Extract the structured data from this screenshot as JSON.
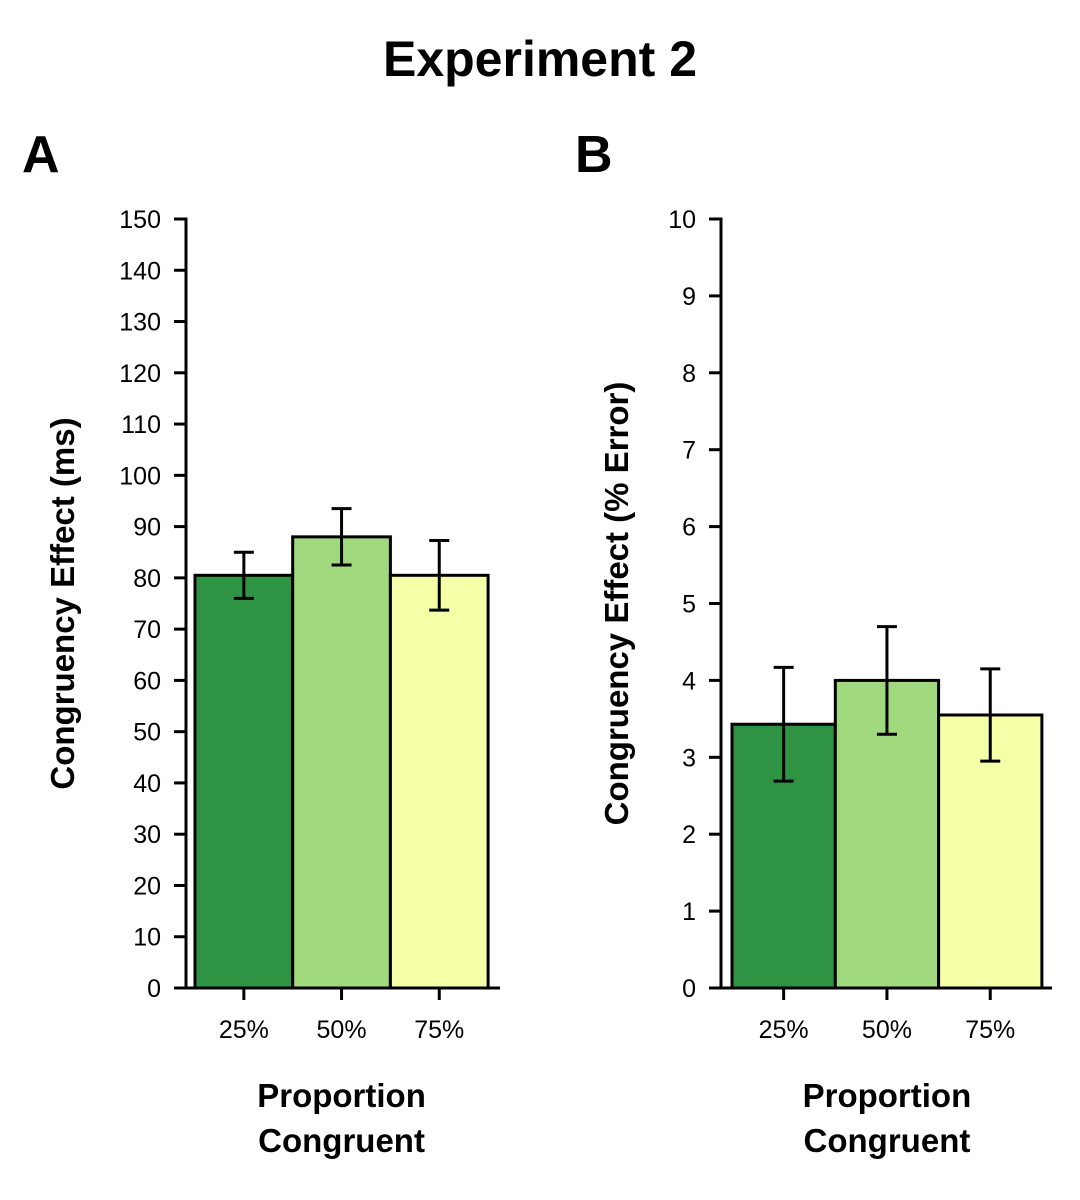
{
  "figure": {
    "title": "Experiment 2"
  },
  "chart_data": [
    {
      "panel": "A",
      "type": "bar",
      "title": "",
      "categories": [
        "25%",
        "50%",
        "75%"
      ],
      "values": [
        80.5,
        88,
        80.5
      ],
      "errors": [
        4.5,
        5.5,
        6.8
      ],
      "bar_colors": [
        "#2e9444",
        "#a1d97f",
        "#f4ffa8"
      ],
      "xlabel": "Proportion Congruent",
      "ylabel": "Congruency Effect (ms)",
      "ylim": [
        0,
        150
      ],
      "yticks": [
        0,
        10,
        20,
        30,
        40,
        50,
        60,
        70,
        80,
        90,
        100,
        110,
        120,
        130,
        140,
        150
      ],
      "grid": false,
      "legend": "none"
    },
    {
      "panel": "B",
      "type": "bar",
      "title": "",
      "categories": [
        "25%",
        "50%",
        "75%"
      ],
      "values": [
        3.43,
        4.0,
        3.55
      ],
      "errors": [
        0.74,
        0.7,
        0.6
      ],
      "bar_colors": [
        "#2e9444",
        "#a1d97f",
        "#f4ffa8"
      ],
      "xlabel": "Proportion Congruent",
      "ylabel": "Congruency Effect (% Error)",
      "ylim": [
        0,
        10
      ],
      "yticks": [
        0,
        1,
        2,
        3,
        4,
        5,
        6,
        7,
        8,
        9,
        10
      ],
      "grid": false,
      "legend": "none"
    }
  ]
}
